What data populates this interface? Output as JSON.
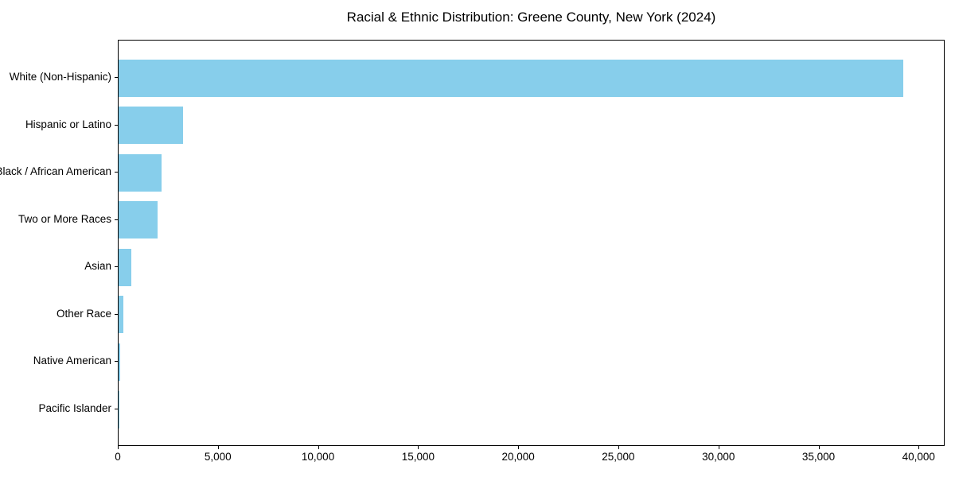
{
  "title": "Racial & Ethnic Distribution: Greene County, New York (2024)",
  "chart_data": {
    "type": "bar",
    "orientation": "horizontal",
    "title": "Racial & Ethnic Distribution: Greene County, New York (2024)",
    "categories": [
      "White (Non-Hispanic)",
      "Hispanic or Latino",
      "Black / African American",
      "Two or More Races",
      "Asian",
      "Other Race",
      "Native American",
      "Pacific Islander"
    ],
    "values": [
      39250,
      3240,
      2170,
      1970,
      620,
      230,
      60,
      15
    ],
    "xlabel": "",
    "ylabel": "",
    "xlim": [
      0,
      41300
    ],
    "x_ticks": [
      0,
      5000,
      10000,
      15000,
      20000,
      25000,
      30000,
      35000,
      40000
    ],
    "x_tick_labels": [
      "0",
      "5,000",
      "10,000",
      "15,000",
      "20,000",
      "25,000",
      "30,000",
      "35,000",
      "40,000"
    ],
    "bar_color": "#87CEEB",
    "spine_color": "#000000",
    "background_color": "#FFFFFF",
    "grid": false,
    "legend": null
  }
}
